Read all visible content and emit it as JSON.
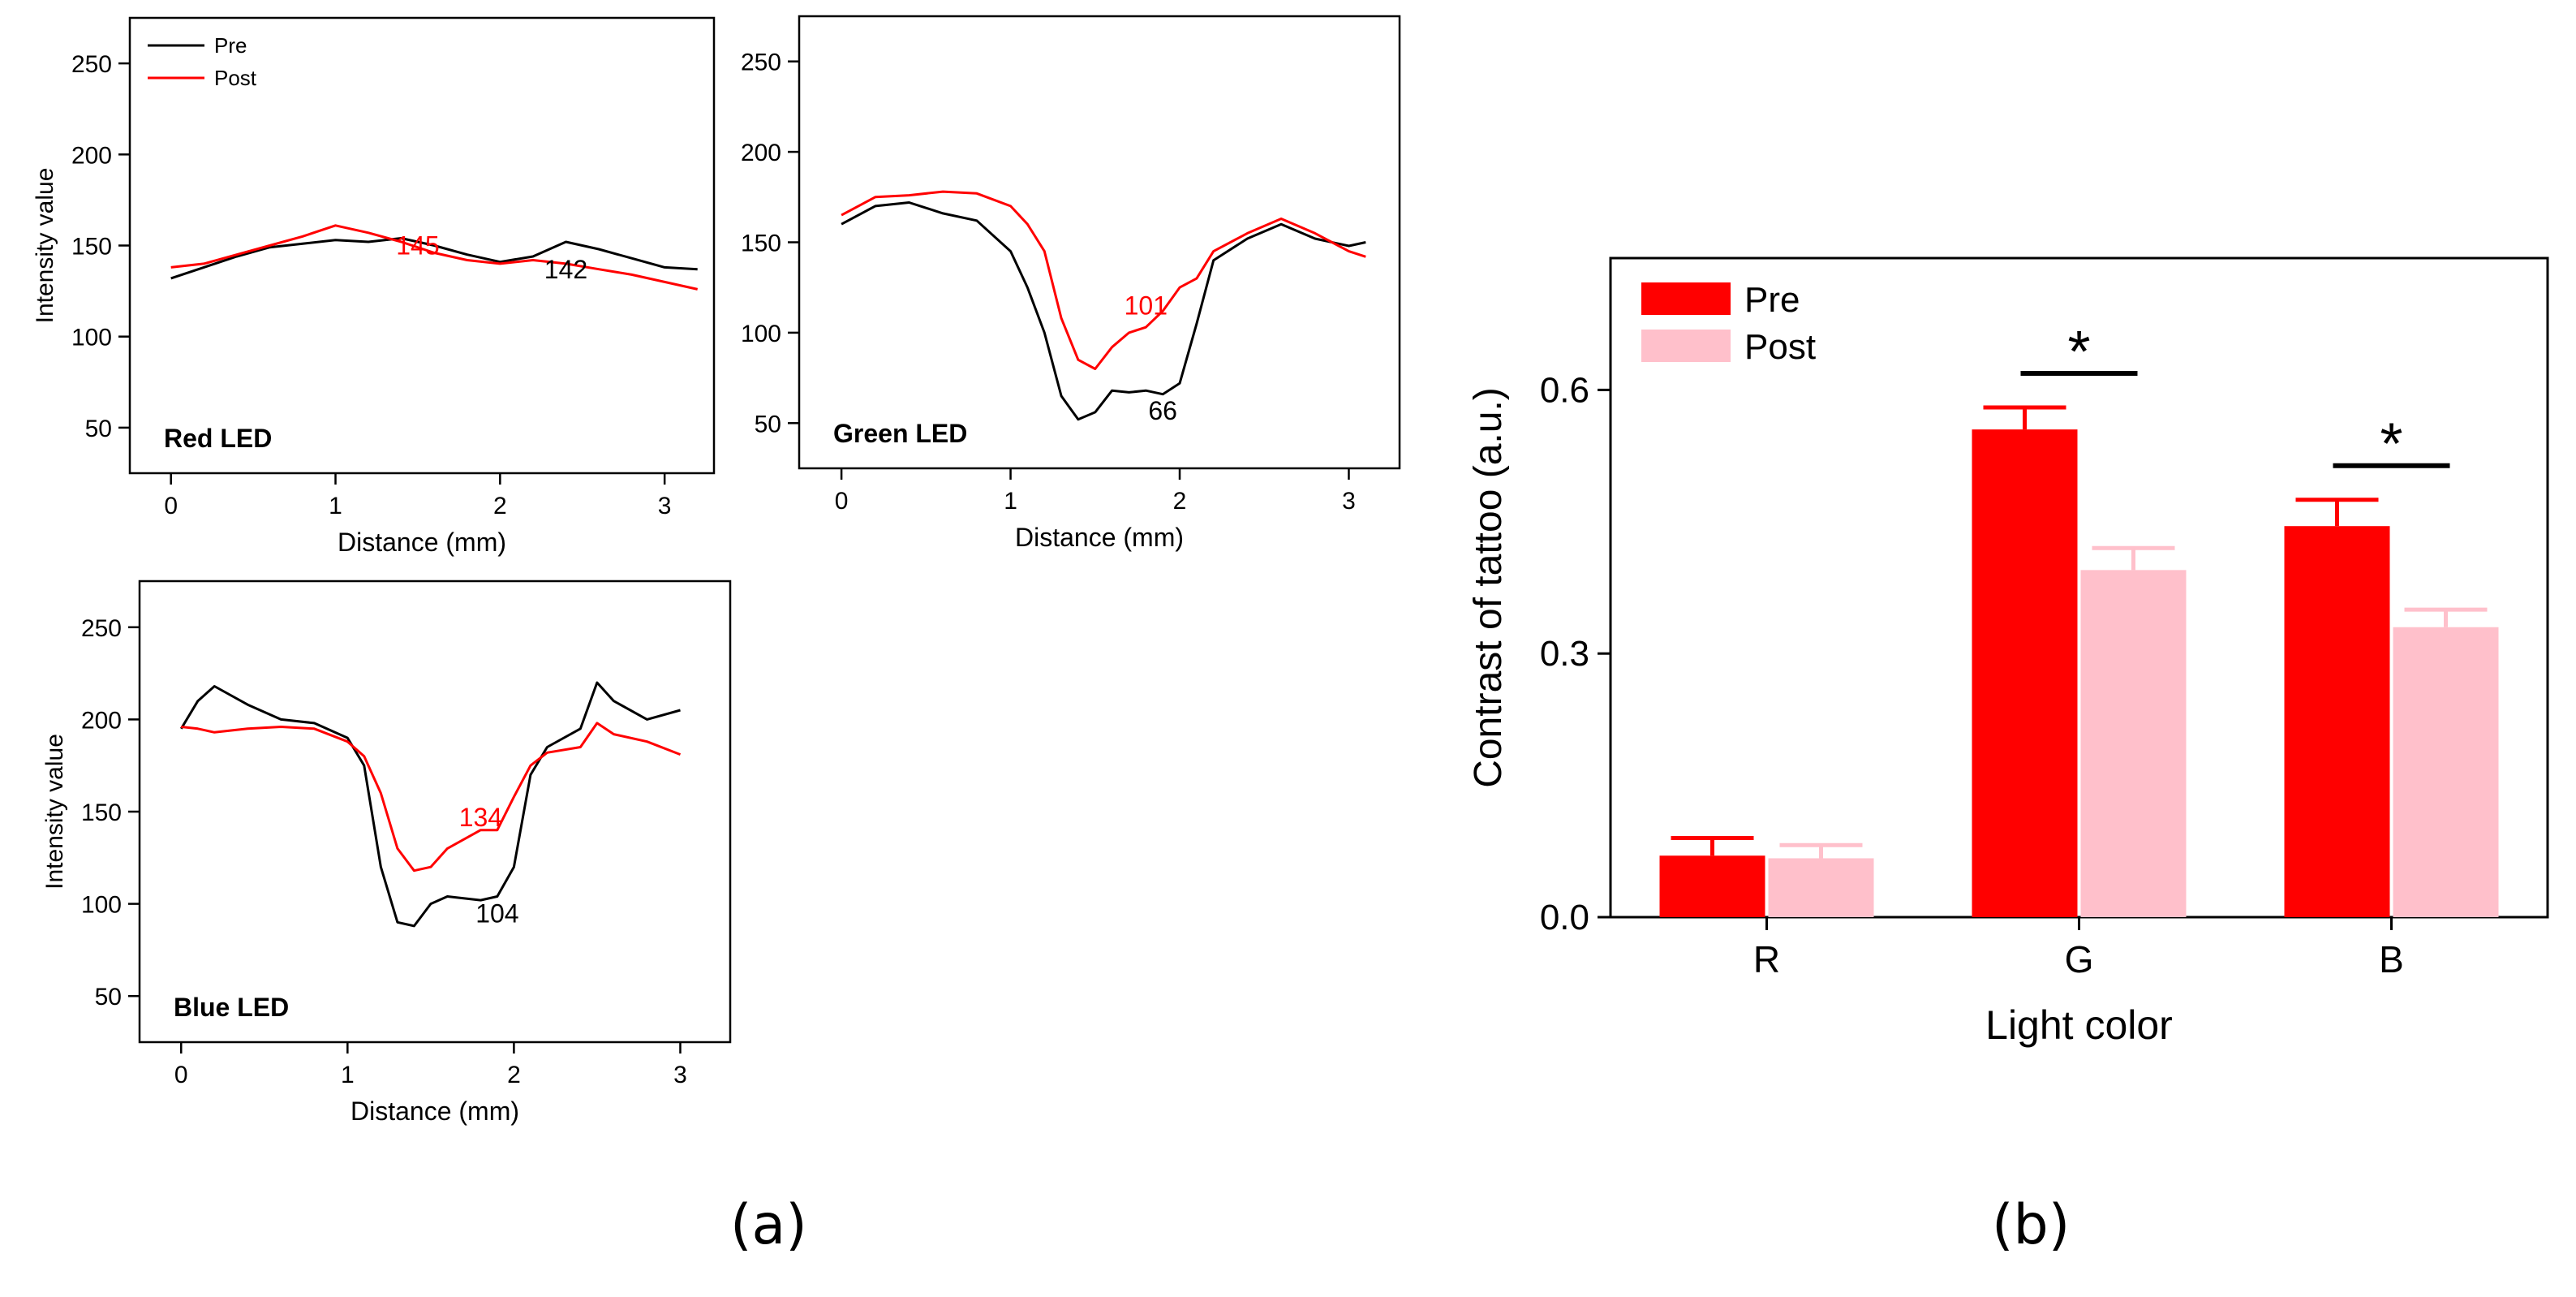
{
  "figure": {
    "label_a": "(a)",
    "label_b": "(b)"
  },
  "chart_data": [
    {
      "type": "line",
      "panel": "Red LED",
      "title": "Red LED",
      "xlabel": "Distance (mm)",
      "ylabel": "Intensity value",
      "xlim": [
        -0.25,
        3.3
      ],
      "ylim": [
        25,
        275
      ],
      "xticks": [
        0,
        1,
        2,
        3
      ],
      "yticks": [
        50,
        100,
        150,
        200,
        250
      ],
      "legend": [
        "Pre",
        "Post"
      ],
      "series": [
        {
          "name": "Pre",
          "color": "#000000",
          "x": [
            0,
            0.2,
            0.4,
            0.6,
            0.8,
            1.0,
            1.2,
            1.4,
            1.6,
            1.8,
            2.0,
            2.2,
            2.4,
            2.6,
            2.8,
            3.0,
            3.2
          ],
          "y": [
            132,
            138,
            144,
            149,
            151,
            153,
            152,
            154,
            150,
            145,
            141,
            144,
            152,
            148,
            143,
            138,
            137
          ]
        },
        {
          "name": "Post",
          "color": "#ff0000",
          "x": [
            0,
            0.2,
            0.4,
            0.6,
            0.8,
            1.0,
            1.2,
            1.4,
            1.6,
            1.8,
            2.0,
            2.2,
            2.4,
            2.6,
            2.8,
            3.0,
            3.2
          ],
          "y": [
            138,
            140,
            145,
            150,
            155,
            161,
            157,
            152,
            146,
            142,
            140,
            142,
            140,
            137,
            134,
            130,
            126
          ]
        }
      ],
      "annotations": [
        {
          "text": "145",
          "x": 1.5,
          "y": 145,
          "color": "#ff0000"
        },
        {
          "text": "142",
          "x": 2.4,
          "y": 132,
          "color": "#000000"
        }
      ]
    },
    {
      "type": "line",
      "panel": "Green LED",
      "title": "Green LED",
      "xlabel": "Distance (mm)",
      "ylabel": "",
      "xlim": [
        -0.25,
        3.3
      ],
      "ylim": [
        25,
        275
      ],
      "xticks": [
        0,
        1,
        2,
        3
      ],
      "yticks": [
        50,
        100,
        150,
        200,
        250
      ],
      "series": [
        {
          "name": "Pre",
          "color": "#000000",
          "x": [
            0,
            0.2,
            0.4,
            0.6,
            0.8,
            1.0,
            1.1,
            1.2,
            1.3,
            1.4,
            1.5,
            1.6,
            1.7,
            1.8,
            1.9,
            2.0,
            2.1,
            2.2,
            2.4,
            2.6,
            2.8,
            3.0,
            3.1
          ],
          "y": [
            160,
            170,
            172,
            166,
            162,
            145,
            125,
            100,
            65,
            52,
            56,
            68,
            67,
            68,
            66,
            72,
            105,
            140,
            152,
            160,
            152,
            148,
            150
          ]
        },
        {
          "name": "Post",
          "color": "#ff0000",
          "x": [
            0,
            0.2,
            0.4,
            0.6,
            0.8,
            1.0,
            1.1,
            1.2,
            1.3,
            1.4,
            1.5,
            1.6,
            1.7,
            1.8,
            1.9,
            2.0,
            2.1,
            2.2,
            2.4,
            2.6,
            2.8,
            3.0,
            3.1
          ],
          "y": [
            165,
            175,
            176,
            178,
            177,
            170,
            160,
            145,
            108,
            85,
            80,
            92,
            100,
            103,
            112,
            125,
            130,
            145,
            155,
            163,
            155,
            145,
            142
          ]
        }
      ],
      "annotations": [
        {
          "text": "101",
          "x": 1.8,
          "y": 110,
          "color": "#ff0000"
        },
        {
          "text": "66",
          "x": 1.9,
          "y": 52,
          "color": "#000000"
        }
      ]
    },
    {
      "type": "line",
      "panel": "Blue LED",
      "title": "Blue LED",
      "xlabel": "Distance (mm)",
      "ylabel": "Intensity value",
      "xlim": [
        -0.25,
        3.3
      ],
      "ylim": [
        25,
        275
      ],
      "xticks": [
        0,
        1,
        2,
        3
      ],
      "yticks": [
        50,
        100,
        150,
        200,
        250
      ],
      "series": [
        {
          "name": "Pre",
          "color": "#000000",
          "x": [
            0,
            0.1,
            0.2,
            0.4,
            0.6,
            0.8,
            1.0,
            1.1,
            1.2,
            1.3,
            1.4,
            1.5,
            1.6,
            1.8,
            1.9,
            2.0,
            2.1,
            2.2,
            2.4,
            2.5,
            2.6,
            2.8,
            3.0
          ],
          "y": [
            195,
            210,
            218,
            208,
            200,
            198,
            190,
            175,
            120,
            90,
            88,
            100,
            104,
            102,
            104,
            120,
            170,
            185,
            195,
            220,
            210,
            200,
            205
          ]
        },
        {
          "name": "Post",
          "color": "#ff0000",
          "x": [
            0,
            0.1,
            0.2,
            0.4,
            0.6,
            0.8,
            1.0,
            1.1,
            1.2,
            1.3,
            1.4,
            1.5,
            1.6,
            1.8,
            1.9,
            2.0,
            2.1,
            2.2,
            2.4,
            2.5,
            2.6,
            2.8,
            3.0
          ],
          "y": [
            196,
            195,
            193,
            195,
            196,
            195,
            188,
            180,
            160,
            130,
            118,
            120,
            130,
            140,
            140,
            158,
            175,
            182,
            185,
            198,
            192,
            188,
            181
          ]
        }
      ],
      "annotations": [
        {
          "text": "134",
          "x": 1.8,
          "y": 142,
          "color": "#ff0000"
        },
        {
          "text": "104",
          "x": 1.9,
          "y": 90,
          "color": "#000000"
        }
      ]
    },
    {
      "type": "bar",
      "panel": "Contrast",
      "xlabel": "Light color",
      "ylabel": "Contrast of tattoo (a.u.)",
      "ylim": [
        0,
        0.75
      ],
      "yticks": [
        0.0,
        0.3,
        0.6
      ],
      "ytick_labels": [
        "0.0",
        "0.3",
        "0.6"
      ],
      "categories": [
        "R",
        "G",
        "B"
      ],
      "series": [
        {
          "name": "Pre",
          "color": "#ff0000",
          "values": [
            0.07,
            0.555,
            0.445
          ],
          "errors": [
            0.02,
            0.025,
            0.03
          ]
        },
        {
          "name": "Post",
          "color": "#ffc0cb",
          "values": [
            0.067,
            0.395,
            0.33
          ],
          "errors": [
            0.015,
            0.025,
            0.02
          ]
        }
      ],
      "significance": [
        {
          "category": "G",
          "text": "*"
        },
        {
          "category": "B",
          "text": "*"
        }
      ]
    }
  ]
}
